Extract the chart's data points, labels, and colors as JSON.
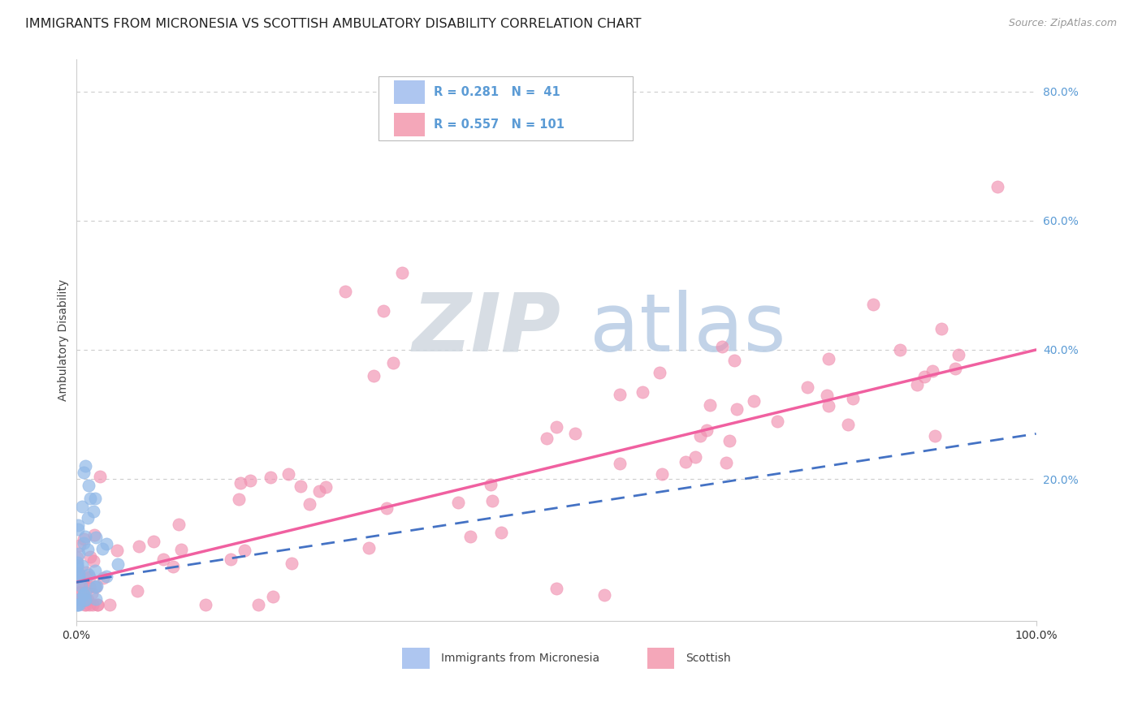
{
  "title": "IMMIGRANTS FROM MICRONESIA VS SCOTTISH AMBULATORY DISABILITY CORRELATION CHART",
  "source": "Source: ZipAtlas.com",
  "ylabel": "Ambulatory Disability",
  "ytick_values": [
    0.2,
    0.4,
    0.6,
    0.8
  ],
  "ytick_labels": [
    "20.0%",
    "40.0%",
    "60.0%",
    "80.0%"
  ],
  "micronesia_color": "#90b8e8",
  "scottish_color": "#f090b0",
  "micronesia_line_color": "#4472c4",
  "scottish_line_color": "#f060a0",
  "bg_color": "#ffffff",
  "grid_color": "#cccccc",
  "title_fontsize": 11.5,
  "axis_label_fontsize": 10,
  "tick_fontsize": 10,
  "watermark_zip_color": "#d0d8e0",
  "watermark_atlas_color": "#b8cce4",
  "watermark_fontsize": 72,
  "xlim": [
    0.0,
    1.0
  ],
  "ylim": [
    -0.02,
    0.85
  ],
  "legend_mic_color": "#aec6f0",
  "legend_sco_color": "#f4a7b9",
  "legend_text_color": "#5b9bd5"
}
